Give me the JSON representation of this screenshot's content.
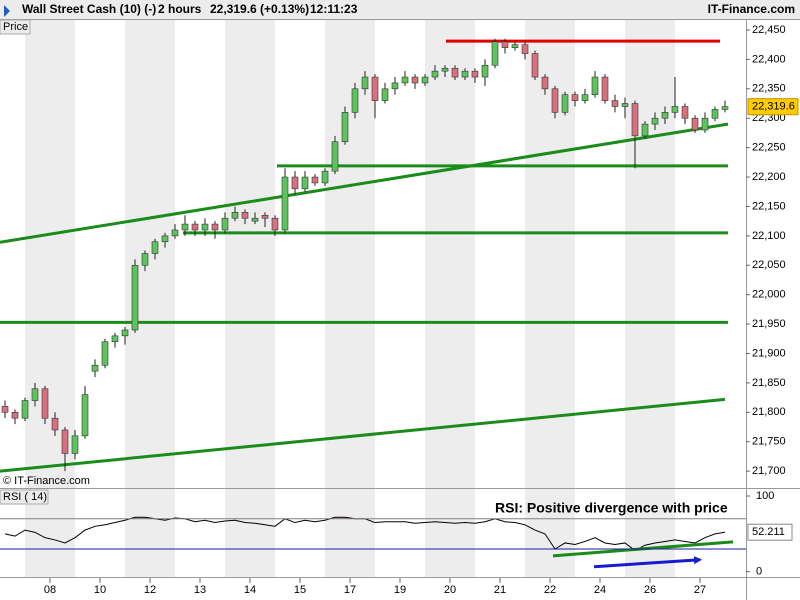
{
  "header": {
    "instrument": "Wall Street Cash (10) (-)",
    "timeframe": "2 hours",
    "price": "22,319.6 (+0.13%)",
    "time": "12:11:23",
    "site": "IT-Finance.com"
  },
  "chart_data": [
    {
      "type": "candlestick",
      "y_label": "Price",
      "watermark": "© IT-Finance.com",
      "up_color": "#5cc45c",
      "down_color": "#d9707f",
      "x": [
        0.1,
        0.3,
        0.5,
        0.7,
        0.9,
        1.1,
        1.3,
        1.5,
        1.7,
        1.9,
        2.1,
        2.3,
        2.5,
        2.7,
        2.9,
        3.1,
        3.3,
        3.5,
        3.7,
        3.9,
        4.1,
        4.3,
        4.5,
        4.7,
        4.9,
        5.1,
        5.3,
        5.5,
        5.7,
        5.9,
        6.1,
        6.3,
        6.5,
        6.7,
        6.9,
        7.1,
        7.3,
        7.5,
        7.7,
        7.9,
        8.1,
        8.3,
        8.5,
        8.7,
        8.9,
        9.1,
        9.3,
        9.5,
        9.7,
        9.9,
        10.1,
        10.3,
        10.5,
        10.7,
        10.9,
        11.1,
        11.3,
        11.5,
        11.7,
        11.9,
        12.1,
        12.3,
        12.5,
        12.7,
        12.9,
        13.1,
        13.3,
        13.5,
        13.7,
        13.9,
        14.1,
        14.3,
        14.5
      ],
      "open": [
        21810,
        21800,
        21790,
        21820,
        21840,
        21790,
        21770,
        21730,
        21760,
        21870,
        21880,
        21920,
        21930,
        21940,
        22050,
        22070,
        22090,
        22100,
        22110,
        22120,
        22110,
        22120,
        22110,
        22130,
        22140,
        22125,
        22135,
        22130,
        22110,
        22200,
        22180,
        22200,
        22190,
        22210,
        22260,
        22310,
        22350,
        22370,
        22330,
        22350,
        22360,
        22370,
        22360,
        22370,
        22380,
        22385,
        22370,
        22380,
        22370,
        22390,
        22430,
        22420,
        22425,
        22410,
        22370,
        22350,
        22310,
        22340,
        22330,
        22340,
        22370,
        22330,
        22320,
        22325,
        22270,
        22290,
        22300,
        22310,
        22320,
        22300,
        22280,
        22300,
        22315
      ],
      "high": [
        21820,
        21805,
        21825,
        21850,
        21845,
        21800,
        21775,
        21770,
        21845,
        21890,
        21925,
        21935,
        21945,
        22060,
        22075,
        22095,
        22105,
        22120,
        22135,
        22125,
        22130,
        22125,
        22140,
        22150,
        22145,
        22140,
        22140,
        22135,
        22215,
        22210,
        22210,
        22205,
        22215,
        22270,
        22320,
        22360,
        22380,
        22375,
        22360,
        22370,
        22380,
        22375,
        22375,
        22390,
        22390,
        22390,
        22385,
        22385,
        22400,
        22435,
        22435,
        22430,
        22430,
        22415,
        22375,
        22355,
        22345,
        22345,
        22350,
        22380,
        22375,
        22340,
        22335,
        22330,
        22295,
        22310,
        22320,
        22370,
        22325,
        22305,
        22310,
        22320,
        22330
      ],
      "low": [
        21790,
        21780,
        21785,
        21810,
        21780,
        21760,
        21700,
        21720,
        21755,
        21860,
        21875,
        21910,
        21915,
        21935,
        22040,
        22060,
        22080,
        22095,
        22100,
        22100,
        22100,
        22095,
        22105,
        22125,
        22120,
        22120,
        22115,
        22100,
        22105,
        22170,
        22175,
        22185,
        22185,
        22205,
        22255,
        22300,
        22340,
        22300,
        22325,
        22340,
        22355,
        22350,
        22355,
        22365,
        22370,
        22365,
        22365,
        22360,
        22355,
        22385,
        22410,
        22415,
        22400,
        22365,
        22340,
        22300,
        22305,
        22320,
        22325,
        22335,
        22325,
        22310,
        22300,
        22215,
        22265,
        22280,
        22290,
        22300,
        22290,
        22275,
        22275,
        22295,
        22310
      ],
      "close": [
        21800,
        21790,
        21820,
        21840,
        21790,
        21770,
        21730,
        21760,
        21830,
        21880,
        21920,
        21930,
        21940,
        22050,
        22070,
        22090,
        22100,
        22110,
        22120,
        22110,
        22120,
        22110,
        22130,
        22140,
        22130,
        22130,
        22130,
        22110,
        22200,
        22180,
        22200,
        22190,
        22210,
        22260,
        22310,
        22350,
        22370,
        22330,
        22350,
        22360,
        22370,
        22360,
        22370,
        22380,
        22385,
        22370,
        22380,
        22370,
        22390,
        22430,
        22420,
        22425,
        22410,
        22370,
        22350,
        22310,
        22340,
        22330,
        22340,
        22370,
        22330,
        22320,
        22325,
        22270,
        22290,
        22300,
        22310,
        22320,
        22300,
        22280,
        22300,
        22315,
        22319.6
      ],
      "last_label": "22,319.6",
      "xlim": [
        0,
        14.92
      ],
      "ylim": [
        21673,
        22467
      ],
      "xticks": [
        {
          "value": 1,
          "label": "08"
        },
        {
          "value": 2,
          "label": "10"
        },
        {
          "value": 3,
          "label": "12"
        },
        {
          "value": 4,
          "label": "13"
        },
        {
          "value": 5,
          "label": "14"
        },
        {
          "value": 6,
          "label": "15"
        },
        {
          "value": 7,
          "label": "17"
        },
        {
          "value": 8,
          "label": "19"
        },
        {
          "value": 9,
          "label": "20"
        },
        {
          "value": 10,
          "label": "21"
        },
        {
          "value": 11,
          "label": "22"
        },
        {
          "value": 12,
          "label": "24"
        },
        {
          "value": 13,
          "label": "26"
        },
        {
          "value": 14,
          "label": "27"
        }
      ],
      "yticks": [
        {
          "value": 21700,
          "label": "21,700"
        },
        {
          "value": 21750,
          "label": "21,750"
        },
        {
          "value": 21800,
          "label": "21,800"
        },
        {
          "value": 21850,
          "label": "21,850"
        },
        {
          "value": 21900,
          "label": "21,900"
        },
        {
          "value": 21950,
          "label": "21,950"
        },
        {
          "value": 22000,
          "label": "22,000"
        },
        {
          "value": 22050,
          "label": "22,050"
        },
        {
          "value": 22100,
          "label": "22,100"
        },
        {
          "value": 22150,
          "label": "22,150"
        },
        {
          "value": 22200,
          "label": "22,200"
        },
        {
          "value": 22250,
          "label": "22,250"
        },
        {
          "value": 22300,
          "label": "22,300"
        },
        {
          "value": 22350,
          "label": "22,350"
        },
        {
          "value": 22400,
          "label": "22,400"
        },
        {
          "value": 22450,
          "label": "22,450"
        }
      ],
      "trendlines": [
        {
          "color": "#e00000",
          "x": [
            8.92,
            14.4
          ],
          "y": [
            22431,
            22431
          ]
        },
        {
          "color": "#1a8c1a",
          "x": [
            5.54,
            14.56
          ],
          "y": [
            22219,
            22219
          ]
        },
        {
          "color": "#1a8c1a",
          "x": [
            3.66,
            14.56
          ],
          "y": [
            22105,
            22105
          ]
        },
        {
          "color": "#1a8c1a",
          "x": [
            0,
            14.56
          ],
          "y": [
            21953,
            21953
          ]
        },
        {
          "color": "#1a8c1a",
          "x": [
            0,
            14.56
          ],
          "y": [
            22089,
            22290
          ]
        },
        {
          "color": "#1a8c1a",
          "x": [
            0,
            14.5
          ],
          "y": [
            21700,
            21822
          ]
        }
      ]
    },
    {
      "type": "line",
      "title": "RSI ( 14)",
      "x": [
        0.1,
        0.3,
        0.5,
        0.7,
        0.9,
        1.1,
        1.3,
        1.5,
        1.7,
        1.9,
        2.1,
        2.3,
        2.5,
        2.7,
        2.9,
        3.1,
        3.3,
        3.5,
        3.7,
        3.9,
        4.1,
        4.3,
        4.5,
        4.7,
        4.9,
        5.1,
        5.3,
        5.5,
        5.7,
        5.9,
        6.1,
        6.3,
        6.5,
        6.7,
        6.9,
        7.1,
        7.3,
        7.5,
        7.7,
        7.9,
        8.1,
        8.3,
        8.5,
        8.7,
        8.9,
        9.1,
        9.3,
        9.5,
        9.7,
        9.9,
        10.1,
        10.3,
        10.5,
        10.7,
        10.9,
        11.1,
        11.3,
        11.5,
        11.7,
        11.9,
        12.1,
        12.3,
        12.5,
        12.7,
        12.9,
        13.1,
        13.3,
        13.5,
        13.7,
        13.9,
        14.1,
        14.3,
        14.5
      ],
      "series": [
        {
          "name": "RSI ( 14)",
          "color": "#000000",
          "values": [
            50,
            47,
            55,
            52,
            45,
            42,
            38,
            45,
            55,
            60,
            62,
            65,
            68,
            72,
            72,
            70,
            68,
            71,
            70,
            66,
            68,
            65,
            67,
            68,
            65,
            64,
            62,
            60,
            70,
            65,
            68,
            66,
            68,
            72,
            72,
            70,
            70,
            65,
            66,
            66,
            66,
            64,
            65,
            66,
            65,
            64,
            65,
            64,
            66,
            70,
            66,
            65,
            62,
            55,
            50,
            30,
            38,
            36,
            40,
            45,
            38,
            36,
            38,
            28,
            35,
            38,
            40,
            42,
            40,
            38,
            45,
            50,
            52.211
          ]
        }
      ],
      "overbought_fill": "#c9a3a3",
      "levels": [
        {
          "value": 70,
          "color": "#808080"
        },
        {
          "value": 30,
          "color": "#1a1aa0"
        }
      ],
      "xlim": [
        0,
        14.92
      ],
      "ylim": [
        -7,
        108
      ],
      "yticks": [
        0,
        100
      ],
      "annotation": {
        "text": "RSI: Positive divergence with price",
        "color": "#1a1ad0"
      },
      "trendlines": [
        {
          "color": "#1a8c1a",
          "x": [
            11.06,
            14.66
          ],
          "y": [
            21,
            39.5
          ]
        }
      ],
      "arrow": {
        "color": "#1a1ad0",
        "x": [
          11.88,
          14.0
        ],
        "y": [
          6.6,
          15.8
        ]
      }
    }
  ]
}
